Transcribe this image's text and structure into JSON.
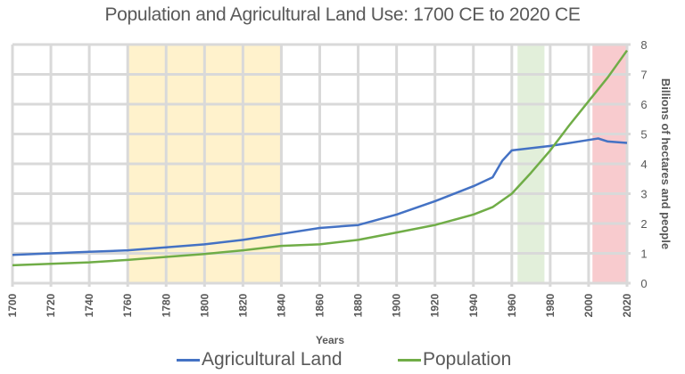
{
  "title": "Population and Agricultural Land Use: 1700 CE to 2020 CE",
  "legend": {
    "items": [
      {
        "label": "Agricultural Land",
        "color": "#4472C4"
      },
      {
        "label": "Population",
        "color": "#70AD47"
      }
    ]
  },
  "colors": {
    "agricultural_land": "#4472C4",
    "population": "#70AD47",
    "grid": "#D9D9D9",
    "band_yellow": "#FFF2CC",
    "band_green": "#E2EFDA",
    "band_pink": "#F8CBCE"
  },
  "chart_data": {
    "type": "line",
    "title": "Population and Agricultural Land Use: 1700 CE to 2020 CE",
    "xlabel": "Years",
    "ylabel": "Billions of hectares and people",
    "y_axis_position": "right",
    "xlim": [
      1700,
      2020
    ],
    "ylim": [
      0,
      8
    ],
    "x_ticks": [
      "1700",
      "1720",
      "1740",
      "1760",
      "1780",
      "1800",
      "1820",
      "1840",
      "1860",
      "1880",
      "1900",
      "1920",
      "1940",
      "1960",
      "1980",
      "2000",
      "2020"
    ],
    "y_ticks": [
      "0",
      "1",
      "2",
      "3",
      "4",
      "5",
      "6",
      "7",
      "8"
    ],
    "grid": true,
    "legend_position": "bottom",
    "shaded_bands": [
      {
        "from": 1760,
        "to": 1840,
        "color": "#FFF2CC"
      },
      {
        "from": 1963,
        "to": 1977,
        "color": "#E2EFDA"
      },
      {
        "from": 2002,
        "to": 2020,
        "color": "#F8CBCE"
      }
    ],
    "series": [
      {
        "name": "Agricultural Land",
        "color": "#4472C4",
        "x": [
          1700,
          1720,
          1740,
          1760,
          1780,
          1800,
          1820,
          1840,
          1860,
          1880,
          1900,
          1920,
          1940,
          1950,
          1955,
          1960,
          1980,
          2000,
          2005,
          2010,
          2020
        ],
        "values": [
          0.95,
          1.0,
          1.05,
          1.1,
          1.2,
          1.3,
          1.45,
          1.65,
          1.85,
          1.95,
          2.3,
          2.75,
          3.25,
          3.55,
          4.1,
          4.45,
          4.6,
          4.8,
          4.85,
          4.75,
          4.7
        ]
      },
      {
        "name": "Population",
        "color": "#70AD47",
        "x": [
          1700,
          1720,
          1740,
          1760,
          1780,
          1800,
          1820,
          1840,
          1860,
          1880,
          1900,
          1920,
          1940,
          1950,
          1960,
          1970,
          1980,
          1990,
          2000,
          2010,
          2020
        ],
        "values": [
          0.6,
          0.65,
          0.7,
          0.78,
          0.88,
          0.98,
          1.1,
          1.25,
          1.3,
          1.45,
          1.7,
          1.95,
          2.3,
          2.55,
          3.0,
          3.7,
          4.45,
          5.3,
          6.1,
          6.9,
          7.8
        ]
      }
    ]
  }
}
